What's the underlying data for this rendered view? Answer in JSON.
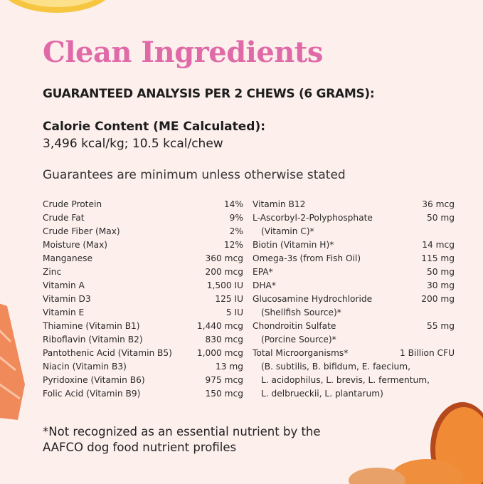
{
  "title": "Clean Ingredients",
  "subtitle": "GUARANTEED ANALYSIS PER 2 CHEWS (6 GRAMS):",
  "calorie": {
    "heading": "Calorie Content (ME Calculated):",
    "value": "3,496 kcal/kg; 10.5 kcal/chew"
  },
  "guarantee_note": "Guarantees are minimum unless otherwise stated",
  "left_items": [
    {
      "name": "Crude Protein",
      "value": "14%"
    },
    {
      "name": "Crude Fat",
      "value": "9%"
    },
    {
      "name": "Crude Fiber (Max)",
      "value": "2%"
    },
    {
      "name": "Moisture (Max)",
      "value": "12%"
    },
    {
      "name": "Manganese",
      "value": "360 mcg"
    },
    {
      "name": "Zinc",
      "value": "200 mcg"
    },
    {
      "name": "Vitamin A",
      "value": "1,500 IU"
    },
    {
      "name": "Vitamin D3",
      "value": "125 IU"
    },
    {
      "name": "Vitamin E",
      "value": "5 IU"
    },
    {
      "name": "Thiamine (Vitamin B1)",
      "value": "1,440 mcg"
    },
    {
      "name": "Riboflavin (Vitamin B2)",
      "value": "830 mcg"
    },
    {
      "name": "Pantothenic Acid (Vitamin B5)",
      "value": "1,000 mcg"
    },
    {
      "name": "Niacin (Vitamin B3)",
      "value": "13 mg"
    },
    {
      "name": "Pyridoxine (Vitamin B6)",
      "value": "975 mcg"
    },
    {
      "name": "Folic Acid (Vitamin B9)",
      "value": "150 mcg"
    }
  ],
  "right_items": [
    {
      "name": "Vitamin B12",
      "value": "36 mcg",
      "cont": []
    },
    {
      "name": "L-Ascorbyl-2-Polyphosphate",
      "value": "50 mg",
      "cont": [
        "(Vitamin C)*"
      ]
    },
    {
      "name": "Biotin (Vitamin H)*",
      "value": "14 mcg",
      "cont": []
    },
    {
      "name": "Omega-3s (from Fish Oil)",
      "value": "115 mg",
      "cont": []
    },
    {
      "name": "EPA*",
      "value": "50 mg",
      "cont": []
    },
    {
      "name": "DHA*",
      "value": "30 mg",
      "cont": []
    },
    {
      "name": "Glucosamine Hydrochloride",
      "value": "200 mg",
      "cont": [
        "(Shellfish Source)*"
      ]
    },
    {
      "name": "Chondroitin Sulfate",
      "value": "55 mg",
      "cont": [
        "(Porcine Source)*"
      ]
    },
    {
      "name": "Total Microorganisms*",
      "value": "1 Billion CFU",
      "cont": [
        "(B. subtilis, B. bifidum, E. faecium,",
        "L. acidophilus, L. brevis, L. fermentum,",
        "L. delbrueckii, L. plantarum)"
      ]
    }
  ],
  "footnote": [
    "*Not recognized as an essential nutrient by the",
    "AAFCO dog food nutrient profiles"
  ],
  "colors": {
    "background": "#fcefec",
    "title": "#e06aa8"
  }
}
